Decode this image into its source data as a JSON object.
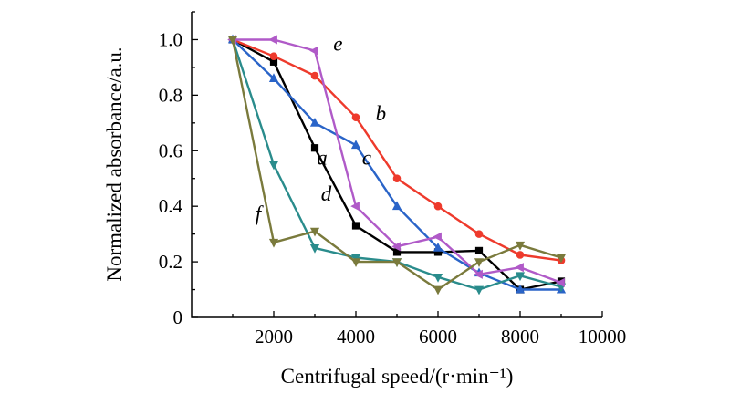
{
  "chart_data": {
    "type": "line",
    "title": "",
    "xlabel": "Centrifugal speed/(r·min⁻¹)",
    "ylabel": "Normalized absorbance/a.u.",
    "xlim": [
      0,
      10000
    ],
    "ylim": [
      0,
      1.1
    ],
    "xticks": [
      2000,
      4000,
      6000,
      8000,
      10000
    ],
    "xtick_labels": [
      "2000",
      "4000",
      "6000",
      "8000",
      "10000"
    ],
    "yticks": [
      0,
      0.2,
      0.4,
      0.6,
      0.8,
      1.0
    ],
    "ytick_labels": [
      "0",
      "0.2",
      "0.4",
      "0.6",
      "0.8",
      "1.0"
    ],
    "grid": false,
    "series": [
      {
        "name": "a",
        "color": "#000000",
        "marker": "square",
        "x": [
          1000,
          2000,
          3000,
          4000,
          5000,
          6000,
          7000,
          8000,
          9000
        ],
        "y": [
          1.0,
          0.92,
          0.61,
          0.33,
          0.235,
          0.235,
          0.24,
          0.1,
          0.13
        ]
      },
      {
        "name": "b",
        "color": "#ee3a2c",
        "marker": "circle",
        "x": [
          1000,
          2000,
          3000,
          4000,
          5000,
          6000,
          7000,
          8000,
          9000
        ],
        "y": [
          1.0,
          0.94,
          0.87,
          0.72,
          0.5,
          0.4,
          0.3,
          0.225,
          0.205
        ]
      },
      {
        "name": "c",
        "color": "#2a64c8",
        "marker": "triangle-up",
        "x": [
          1000,
          2000,
          3000,
          4000,
          5000,
          6000,
          7000,
          8000,
          9000
        ],
        "y": [
          1.0,
          0.86,
          0.7,
          0.62,
          0.4,
          0.25,
          0.16,
          0.1,
          0.1
        ]
      },
      {
        "name": "d",
        "color": "#2a8c8c",
        "marker": "triangle-down",
        "x": [
          1000,
          2000,
          3000,
          4000,
          5000,
          6000,
          7000,
          8000,
          9000
        ],
        "y": [
          1.0,
          0.55,
          0.25,
          0.215,
          0.2,
          0.145,
          0.1,
          0.15,
          0.11
        ]
      },
      {
        "name": "e",
        "color": "#b05ac8",
        "marker": "triangle-left",
        "x": [
          1000,
          2000,
          3000,
          4000,
          5000,
          6000,
          7000,
          8000,
          9000
        ],
        "y": [
          1.0,
          1.0,
          0.96,
          0.4,
          0.255,
          0.29,
          0.155,
          0.18,
          0.125
        ]
      },
      {
        "name": "f",
        "color": "#7a7a3c",
        "marker": "triangle-down",
        "x": [
          1000,
          2000,
          3000,
          4000,
          5000,
          6000,
          7000,
          8000,
          9000
        ],
        "y": [
          1.0,
          0.27,
          0.31,
          0.2,
          0.2,
          0.1,
          0.2,
          0.26,
          0.215
        ]
      }
    ],
    "annotations": [
      {
        "text": "a",
        "x": 3050,
        "y": 0.55
      },
      {
        "text": "b",
        "x": 4480,
        "y": 0.71
      },
      {
        "text": "c",
        "x": 4150,
        "y": 0.55
      },
      {
        "text": "d",
        "x": 3150,
        "y": 0.42
      },
      {
        "text": "e",
        "x": 3450,
        "y": 0.96
      },
      {
        "text": "f",
        "x": 1550,
        "y": 0.35
      }
    ]
  }
}
